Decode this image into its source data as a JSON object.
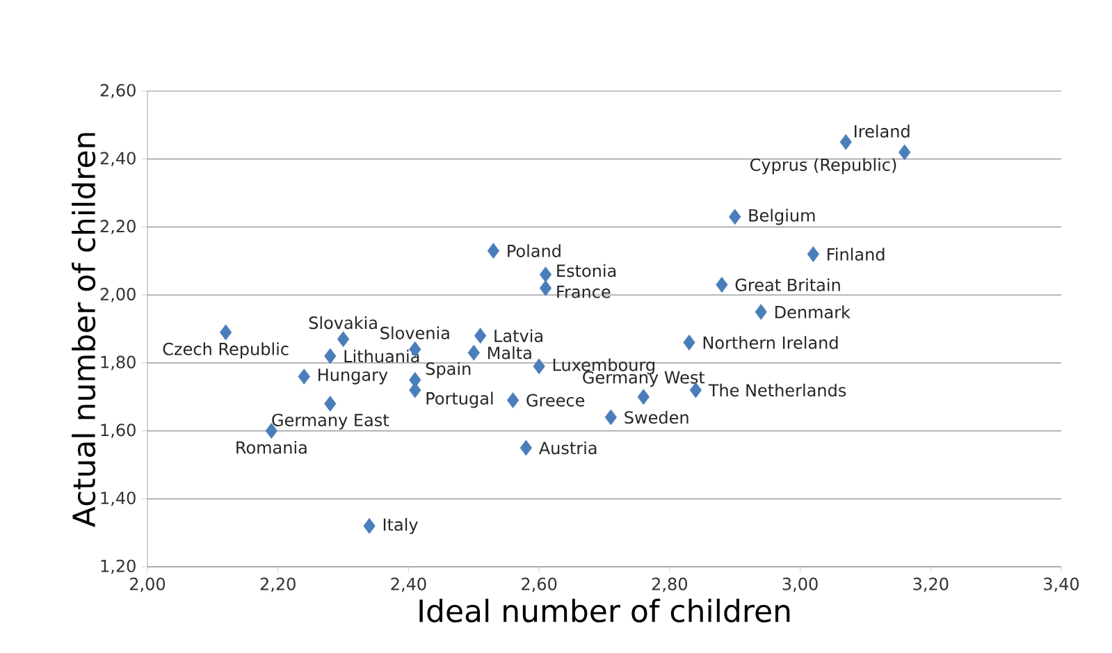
{
  "chart_data": {
    "type": "scatter",
    "xlabel": "Ideal number of children",
    "ylabel": "Actual number of children",
    "marker": "diamond",
    "grid": "y",
    "xlim": [
      2.0,
      3.4
    ],
    "ylim": [
      1.2,
      2.6
    ],
    "xticks": [
      {
        "value": 2.0,
        "label": "2,00"
      },
      {
        "value": 2.2,
        "label": "2,20"
      },
      {
        "value": 2.4,
        "label": "2,40"
      },
      {
        "value": 2.6,
        "label": "2,60"
      },
      {
        "value": 2.8,
        "label": "2,80"
      },
      {
        "value": 3.0,
        "label": "3,00"
      },
      {
        "value": 3.2,
        "label": "3,20"
      },
      {
        "value": 3.4,
        "label": "3,40"
      }
    ],
    "yticks": [
      {
        "value": 1.2,
        "label": "1,20"
      },
      {
        "value": 1.4,
        "label": "1,40"
      },
      {
        "value": 1.6,
        "label": "1,60"
      },
      {
        "value": 1.8,
        "label": "1,80"
      },
      {
        "value": 2.0,
        "label": "2,00"
      },
      {
        "value": 2.2,
        "label": "2,20"
      },
      {
        "value": 2.4,
        "label": "2,40"
      },
      {
        "value": 2.6,
        "label": "2,60"
      }
    ],
    "series": [
      {
        "color": "#4a7ebb",
        "x": [
          3.07,
          3.16,
          2.9,
          3.02,
          2.53,
          2.61,
          2.61,
          2.88,
          2.94,
          2.12,
          2.3,
          2.24,
          2.28,
          2.28,
          2.19,
          2.41,
          2.41,
          2.41,
          2.51,
          2.5,
          2.6,
          2.56,
          2.58,
          2.71,
          2.76,
          2.84,
          2.83,
          2.34
        ],
        "values": [
          2.45,
          2.42,
          2.23,
          2.12,
          2.13,
          2.06,
          2.02,
          2.03,
          1.95,
          1.89,
          1.87,
          1.76,
          1.82,
          1.68,
          1.6,
          1.75,
          1.72,
          1.84,
          1.88,
          1.83,
          1.79,
          1.69,
          1.55,
          1.64,
          1.7,
          1.72,
          1.86,
          1.32
        ]
      }
    ],
    "annotations": [
      {
        "text": "Ireland",
        "x": 3.07,
        "y": 2.45
      },
      {
        "text": "Cyprus (Republic)",
        "x": 3.16,
        "y": 2.42
      },
      {
        "text": "Belgium",
        "x": 2.9,
        "y": 2.23
      },
      {
        "text": "Finland",
        "x": 3.02,
        "y": 2.12
      },
      {
        "text": "Poland",
        "x": 2.53,
        "y": 2.13
      },
      {
        "text": "Estonia",
        "x": 2.61,
        "y": 2.06
      },
      {
        "text": "France",
        "x": 2.61,
        "y": 2.02
      },
      {
        "text": "Great Britain",
        "x": 2.88,
        "y": 2.03
      },
      {
        "text": "Denmark",
        "x": 2.94,
        "y": 1.95
      },
      {
        "text": "Czech Republic",
        "x": 2.12,
        "y": 1.89
      },
      {
        "text": "Slovakia",
        "x": 2.3,
        "y": 1.87
      },
      {
        "text": "Hungary",
        "x": 2.24,
        "y": 1.76
      },
      {
        "text": "Lithuania",
        "x": 2.28,
        "y": 1.82
      },
      {
        "text": "Germany East",
        "x": 2.28,
        "y": 1.68
      },
      {
        "text": "Romania",
        "x": 2.19,
        "y": 1.6
      },
      {
        "text": "Spain",
        "x": 2.41,
        "y": 1.75
      },
      {
        "text": "Portugal",
        "x": 2.41,
        "y": 1.72
      },
      {
        "text": "Slovenia",
        "x": 2.41,
        "y": 1.84
      },
      {
        "text": "Latvia",
        "x": 2.51,
        "y": 1.88
      },
      {
        "text": "Malta",
        "x": 2.5,
        "y": 1.83
      },
      {
        "text": "Luxembourg",
        "x": 2.6,
        "y": 1.79
      },
      {
        "text": "Greece",
        "x": 2.56,
        "y": 1.69
      },
      {
        "text": "Austria",
        "x": 2.58,
        "y": 1.55
      },
      {
        "text": "Sweden",
        "x": 2.71,
        "y": 1.64
      },
      {
        "text": "Germany West",
        "x": 2.76,
        "y": 1.7
      },
      {
        "text": "The Netherlands",
        "x": 2.84,
        "y": 1.72
      },
      {
        "text": "Northern Ireland",
        "x": 2.83,
        "y": 1.86
      },
      {
        "text": "Italy",
        "x": 2.34,
        "y": 1.32
      }
    ]
  }
}
